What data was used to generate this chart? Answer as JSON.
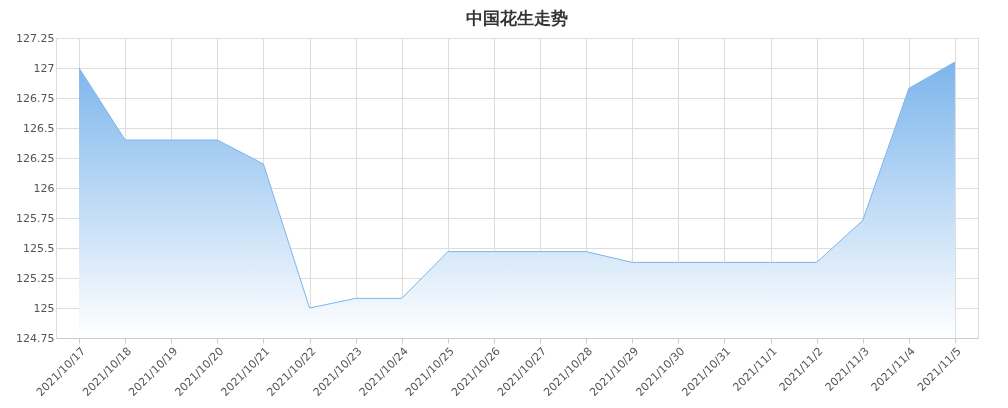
{
  "chart_data": {
    "type": "area",
    "title": "中国花生走势",
    "categories": [
      "2021/10/17",
      "2021/10/18",
      "2021/10/19",
      "2021/10/20",
      "2021/10/21",
      "2021/10/22",
      "2021/10/23",
      "2021/10/24",
      "2021/10/25",
      "2021/10/26",
      "2021/10/27",
      "2021/10/28",
      "2021/10/29",
      "2021/10/30",
      "2021/10/31",
      "2021/11/1",
      "2021/11/2",
      "2021/11/3",
      "2021/11/4",
      "2021/11/5"
    ],
    "series": [
      {
        "color": "#7cb5ec",
        "values": [
          127,
          126.4,
          126.4,
          126.4,
          126.2,
          125,
          125.08,
          125.08,
          125.47,
          125.47,
          125.47,
          125.47,
          125.38,
          125.38,
          125.38,
          125.38,
          125.38,
          125.73,
          126.83,
          127.05
        ]
      }
    ],
    "ylim": [
      124.75,
      127.25
    ],
    "yticks": [
      124.75,
      125,
      125.25,
      125.5,
      125.75,
      126,
      126.25,
      126.5,
      126.75,
      127,
      127.25
    ],
    "grid": true
  }
}
